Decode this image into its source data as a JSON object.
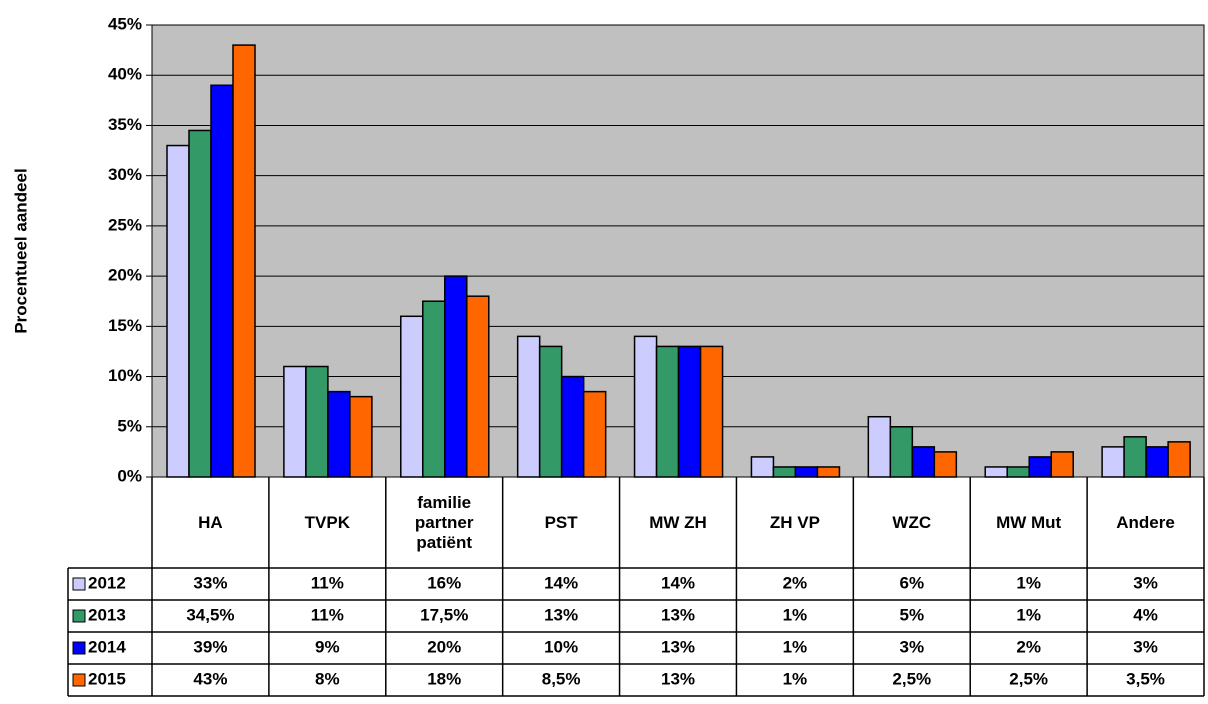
{
  "chart_data": {
    "type": "bar",
    "y_label": "Procentueel aandeel",
    "categories": [
      "HA",
      "TVPK",
      "familie partner patiënt",
      "PST",
      "MW ZH",
      "ZH VP",
      "WZC",
      "MW Mut",
      "Andere"
    ],
    "series": [
      {
        "name": "2012",
        "color": "#ccccff",
        "values": [
          33,
          11,
          16,
          14,
          14,
          2,
          6,
          1,
          3
        ],
        "value_labels": [
          "33%",
          "11%",
          "16%",
          "14%",
          "14%",
          "2%",
          "6%",
          "1%",
          "3%"
        ]
      },
      {
        "name": "2013",
        "color": "#339966",
        "values": [
          34.5,
          11,
          17.5,
          13,
          13,
          1,
          5,
          1,
          4
        ],
        "value_labels": [
          "34,5%",
          "11%",
          "17,5%",
          "13%",
          "13%",
          "1%",
          "5%",
          "1%",
          "4%"
        ]
      },
      {
        "name": "2014",
        "color": "#0000ff",
        "values": [
          39,
          8.5,
          20,
          10,
          13,
          1,
          3,
          2,
          3
        ],
        "value_labels": [
          "39%",
          "9%",
          "20%",
          "10%",
          "13%",
          "1%",
          "3%",
          "2%",
          "3%"
        ]
      },
      {
        "name": "2015",
        "color": "#ff6600",
        "values": [
          43,
          8,
          18,
          8.5,
          13,
          1,
          2.5,
          2.5,
          3.5
        ],
        "value_labels": [
          "43%",
          "8%",
          "18%",
          "8,5%",
          "13%",
          "1%",
          "2,5%",
          "2,5%",
          "3,5%"
        ]
      }
    ],
    "ylim": [
      0,
      45
    ],
    "yticks": [
      {
        "value": 0,
        "label": "0%"
      },
      {
        "value": 5,
        "label": "5%"
      },
      {
        "value": 10,
        "label": "10%"
      },
      {
        "value": 15,
        "label": "15%"
      },
      {
        "value": 20,
        "label": "20%"
      },
      {
        "value": 25,
        "label": "25%"
      },
      {
        "value": 30,
        "label": "30%"
      },
      {
        "value": 35,
        "label": "35%"
      },
      {
        "value": 40,
        "label": "40%"
      },
      {
        "value": 45,
        "label": "45%"
      }
    ],
    "grid": true,
    "plot_background": "#c0c0c0"
  }
}
